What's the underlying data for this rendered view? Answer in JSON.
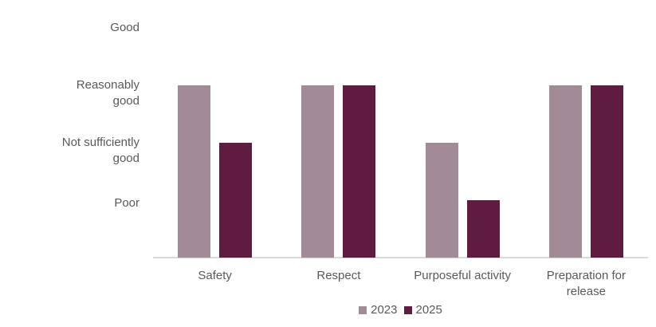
{
  "chart_data": {
    "type": "bar",
    "title": "",
    "xlabel": "",
    "ylabel": "",
    "categories": [
      "Safety",
      "Respect",
      "Purposeful activity",
      "Preparation for release"
    ],
    "category_label_lines": [
      [
        "Safety"
      ],
      [
        "Respect"
      ],
      [
        "Purposeful activity"
      ],
      [
        "Preparation for",
        "release"
      ]
    ],
    "yticks": [
      {
        "value": 4,
        "lines": [
          "Good"
        ]
      },
      {
        "value": 3,
        "lines": [
          "Reasonably",
          "good"
        ]
      },
      {
        "value": 2,
        "lines": [
          "Not sufficiently",
          "good"
        ]
      },
      {
        "value": 1,
        "lines": [
          "Poor"
        ]
      }
    ],
    "rating_scale": {
      "4": "Good",
      "3": "Reasonably good",
      "2": "Not sufficiently good",
      "1": "Poor"
    },
    "ylim": [
      0,
      4.5
    ],
    "grid": false,
    "legend_position": "bottom-center",
    "series": [
      {
        "name": "2023",
        "color": "#a28a97",
        "values": [
          3,
          3,
          2,
          3
        ],
        "value_labels": [
          "Reasonably good",
          "Reasonably good",
          "Not sufficiently good",
          "Reasonably good"
        ]
      },
      {
        "name": "2025",
        "color": "#5f1b40",
        "values": [
          2,
          3,
          1,
          3
        ],
        "value_labels": [
          "Not sufficiently good",
          "Reasonably good",
          "Poor",
          "Reasonably good"
        ]
      }
    ]
  },
  "colors": {
    "background": "#ffffff",
    "axis_line": "#d9d9d9",
    "text": "#595959",
    "series_2023": "#a28a97",
    "series_2025": "#5f1b40"
  }
}
